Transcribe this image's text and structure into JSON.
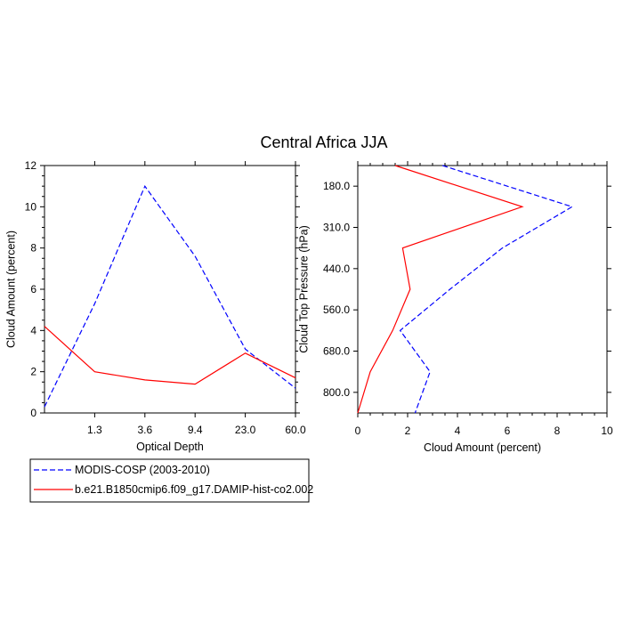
{
  "title": "Central Africa JJA",
  "legend": {
    "entries": [
      {
        "label": "MODIS-COSP (2003-2010)",
        "color": "#0000ff",
        "dash": "dashed"
      },
      {
        "label": "b.e21.B1850cmip6.f09_g17.DAMIP-hist-co2.002",
        "color": "#ff0000",
        "dash": "solid"
      }
    ]
  },
  "chart_data": [
    {
      "type": "line",
      "title": "Central Africa JJA",
      "xlabel": "Optical Depth",
      "ylabel": "Cloud Amount (percent)",
      "x_tick_labels": [
        "1.3",
        "3.6",
        "9.4",
        "23.0",
        "60.0"
      ],
      "ylim": [
        0,
        12
      ],
      "y_ticks": [
        0,
        2,
        4,
        6,
        8,
        10,
        12
      ],
      "grid": false,
      "series": [
        {
          "name": "MODIS-COSP (2003-2010)",
          "color": "#0000ff",
          "dash": "dashed",
          "values": [
            0.3,
            5.3,
            11.0,
            7.6,
            3.1,
            1.2
          ]
        },
        {
          "name": "b.e21.B1850cmip6.f09_g17.DAMIP-hist-co2.002",
          "color": "#ff0000",
          "dash": "solid",
          "values": [
            4.2,
            2.0,
            1.6,
            1.4,
            2.9,
            1.7
          ]
        }
      ]
    },
    {
      "type": "line",
      "xlabel": "Cloud Amount (percent)",
      "ylabel": "Cloud Top Pressure (hPa)",
      "xlim": [
        0,
        10
      ],
      "x_ticks": [
        0,
        2,
        4,
        6,
        8,
        10
      ],
      "y_tick_labels": [
        "180.0",
        "310.0",
        "440.0",
        "560.0",
        "680.0",
        "800.0"
      ],
      "grid": false,
      "series": [
        {
          "name": "MODIS-COSP (2003-2010)",
          "color": "#0000ff",
          "dash": "dashed",
          "values": [
            3.4,
            8.6,
            5.8,
            3.7,
            1.7,
            2.9,
            2.3
          ]
        },
        {
          "name": "b.e21.B1850cmip6.f09_g17.DAMIP-hist-co2.002",
          "color": "#ff0000",
          "dash": "solid",
          "values": [
            1.5,
            6.6,
            1.8,
            2.1,
            1.4,
            0.5,
            0.0
          ]
        }
      ]
    }
  ]
}
